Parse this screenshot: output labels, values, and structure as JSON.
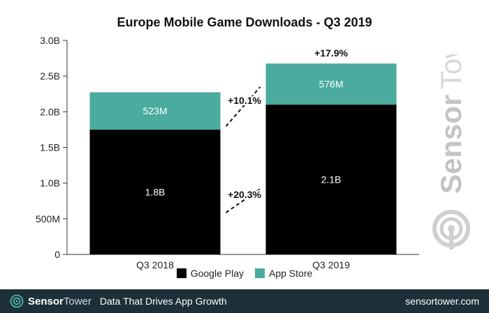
{
  "chart_data": {
    "type": "bar",
    "stacked": true,
    "title": "Europe Mobile Game Downloads - Q3 2019",
    "categories": [
      "Q3 2018",
      "Q3 2019"
    ],
    "series": [
      {
        "name": "Google Play",
        "values": [
          1.75,
          2.1
        ],
        "labels": [
          "1.8B",
          "2.1B"
        ],
        "color": "#000000"
      },
      {
        "name": "App Store",
        "values": [
          0.523,
          0.576
        ],
        "labels": [
          "523M",
          "576M"
        ],
        "color": "#4aab9e"
      }
    ],
    "y_ticks": [
      "0",
      "500M",
      "1.0B",
      "1.5B",
      "2.0B",
      "2.5B",
      "3.0B"
    ],
    "ylim": [
      0,
      3.0
    ],
    "grid": false,
    "legend_position": "bottom",
    "annotations": {
      "total_growth": "+17.9%",
      "app_store_growth": "+10.1%",
      "google_play_growth": "+20.3%"
    }
  },
  "watermark": {
    "sensor": "Sensor",
    "tower": "Tower"
  },
  "footer": {
    "brand_sensor": "Sensor",
    "brand_tower": "Tower",
    "tagline": "Data That Drives App Growth",
    "url": "sensortower.com",
    "bg_color": "#1d2f38"
  }
}
